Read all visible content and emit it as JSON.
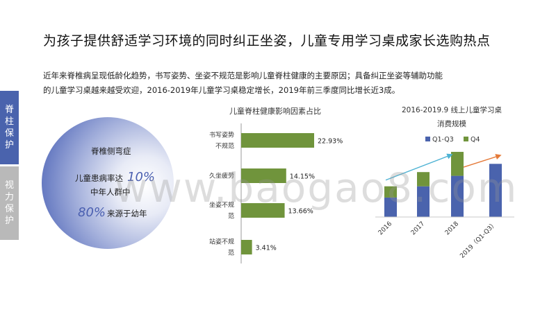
{
  "title": "为孩子提供舒适学习环境的同时纠正坐姿，儿童专用学习桌成家长选购热点",
  "intro": {
    "line1": "近年来脊椎病呈现低龄化趋势，书写姿势、坐姿不规范是影响儿童脊柱健康的主要原因；具备纠正坐姿等辅助功能",
    "line2": "的儿童学习桌越来越受欢迎，2016-2019年儿童学习桌稳定增长，2019年前三季度同比增长近3成。"
  },
  "side_tabs": [
    {
      "label": "脊柱保护",
      "color": "#4a63ad"
    },
    {
      "label": "视力保护",
      "color": "#b9b9b9"
    }
  ],
  "circle": {
    "line1": "脊椎侧弯症",
    "line2_text": "儿童患病率达",
    "line2_pct": "10%",
    "line3": "中年人群中",
    "line4_pct": "80%",
    "line4_text": "来源于幼年"
  },
  "bar_chart_title": "儿童脊柱健康影响因素占比",
  "column_chart_title": {
    "line1": "2016-2019.9 线上儿童学习桌",
    "line2": "消费规模"
  },
  "watermark": "www.baogao8.com",
  "chart_data": [
    {
      "type": "bar",
      "orientation": "horizontal",
      "title": "儿童脊柱健康影响因素占比",
      "categories": [
        [
          "书写姿势",
          "不规范"
        ],
        [
          "久坐疲劳"
        ],
        [
          "坐姿不规",
          "范"
        ],
        [
          "站姿不规",
          "范"
        ]
      ],
      "values": [
        22.93,
        14.15,
        13.66,
        3.41
      ],
      "value_labels": [
        "22.93%",
        "14.15%",
        "13.66%",
        "3.41%"
      ],
      "color": "#70943c",
      "xlim": [
        0,
        25
      ]
    },
    {
      "type": "bar",
      "title": "2016-2019.9 线上儿童学习桌消费规模",
      "categories": [
        "2016",
        "2017",
        "2018",
        "2019（Q1-Q3）"
      ],
      "series": [
        {
          "name": "Q1-Q3",
          "color": "#4a63ad",
          "values": [
            26,
            41,
            55,
            71
          ]
        },
        {
          "name": "Q4",
          "color": "#70943c",
          "values": [
            15,
            19,
            32,
            null
          ]
        }
      ],
      "stacked": true,
      "legend": "top",
      "ylim": [
        0,
        100
      ],
      "trend_arrows": [
        {
          "color": "#4fb3d4"
        },
        {
          "color": "#e57b3a"
        }
      ]
    }
  ]
}
